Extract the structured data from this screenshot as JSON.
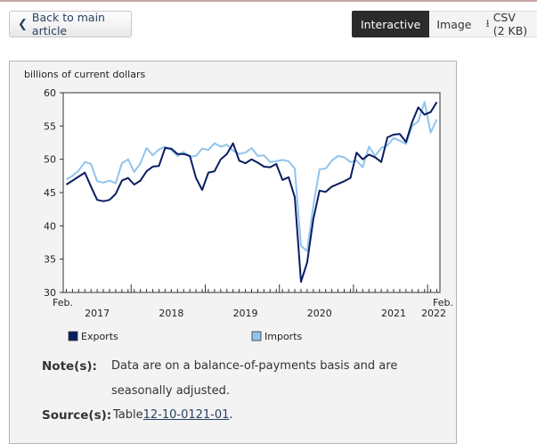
{
  "toolbar": {
    "back_label": "Back to main article",
    "tabs": [
      {
        "label": "Interactive",
        "active": true
      },
      {
        "label": "Image",
        "active": false
      },
      {
        "label": "CSV (2 KB)",
        "active": false,
        "icon": "download-icon"
      }
    ]
  },
  "colors": {
    "exports": "#0b1d62",
    "imports": "#91c4ec",
    "panel_bg": "#f3f3f3",
    "active_tab": "#2b2b2b"
  },
  "chart_data": {
    "type": "line",
    "ylabel": "billions of current dollars",
    "ylim": [
      30,
      60
    ],
    "yticks": [
      30,
      35,
      40,
      45,
      50,
      55,
      60
    ],
    "x_start_label": "Feb.",
    "x_end_label": "Feb.",
    "x_tick_labels": [
      "2017",
      "2018",
      "2019",
      "2020",
      "2021",
      "2022"
    ],
    "x_tick_months": [
      11,
      23,
      35,
      47,
      59,
      71
    ],
    "month_count": 61,
    "legend": "bottom",
    "grid": false,
    "series": [
      {
        "name": "Exports",
        "color": "#0b1d62",
        "values": [
          46.2,
          46.8,
          47.4,
          48.0,
          45.9,
          43.9,
          43.7,
          43.9,
          44.8,
          46.8,
          47.2,
          46.2,
          46.8,
          48.2,
          48.9,
          49.0,
          51.7,
          51.6,
          50.8,
          50.8,
          50.5,
          47.2,
          45.4,
          48.0,
          48.2,
          50.0,
          50.8,
          52.4,
          49.8,
          49.4,
          50.0,
          49.5,
          48.9,
          48.8,
          49.3,
          46.9,
          47.3,
          44.3,
          31.6,
          34.5,
          41.0,
          45.3,
          45.1,
          45.9,
          46.3,
          46.7,
          47.2,
          51.0,
          50.0,
          50.7,
          50.3,
          49.6,
          53.3,
          53.7,
          53.8,
          52.6,
          55.6,
          57.8,
          56.7,
          57.1,
          58.6
        ]
      },
      {
        "name": "Imports",
        "color": "#91c4ec",
        "values": [
          47.0,
          47.5,
          48.3,
          49.6,
          49.3,
          46.7,
          46.5,
          46.8,
          46.4,
          49.4,
          50.0,
          48.1,
          49.4,
          51.7,
          50.6,
          51.5,
          51.9,
          51.4,
          50.5,
          51.1,
          50.4,
          50.5,
          51.6,
          51.4,
          52.4,
          51.9,
          52.2,
          51.3,
          50.8,
          51.0,
          51.7,
          50.5,
          50.6,
          49.6,
          49.7,
          49.9,
          49.7,
          48.6,
          37.0,
          36.2,
          43.0,
          48.5,
          48.6,
          49.8,
          50.5,
          50.3,
          49.6,
          49.8,
          48.8,
          51.9,
          50.5,
          51.7,
          52.1,
          53.2,
          52.8,
          52.3,
          55.0,
          55.7,
          58.6,
          54.0,
          56.0
        ]
      }
    ]
  },
  "notes": {
    "note_label": "Note(s):",
    "note_line1": "Data are on a balance-of-payments basis and are",
    "note_line2": "seasonally adjusted.",
    "source_label": "Source(s):",
    "source_prefix": "Table ",
    "source_link": "12-10-0121-01",
    "source_suffix": "."
  }
}
